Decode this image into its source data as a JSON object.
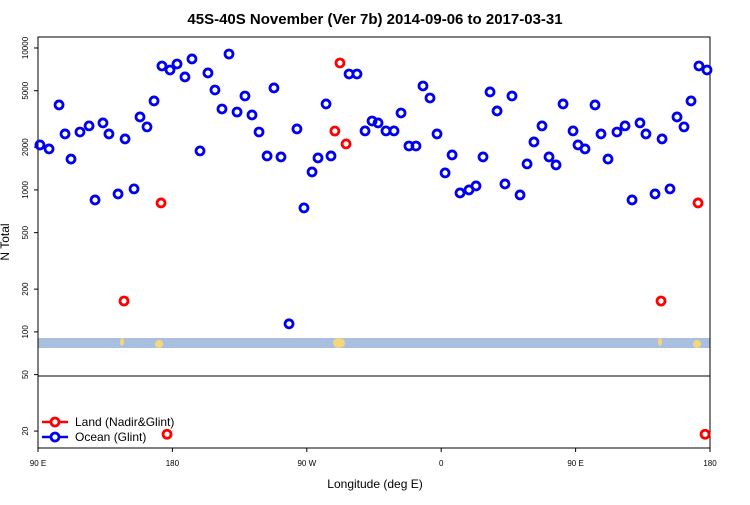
{
  "chart_data": {
    "type": "scatter",
    "title": "45S-40S November (Ver 7b)   2014-09-06 to 2017-03-31",
    "xlabel": "Longitude (deg E)",
    "ylabel": "N Total",
    "ylog": true,
    "legend": "bottom-left",
    "xlim": [
      90,
      540
    ],
    "ylim": [
      15.2,
      11950
    ],
    "xticks": [
      {
        "value": 90,
        "label": "90 E"
      },
      180,
      {
        "value": 270,
        "label": "90 W"
      },
      {
        "value": 360,
        "label": "0"
      },
      {
        "value": 450,
        "label": "90 E"
      },
      {
        "value": 540,
        "label": "180"
      }
    ],
    "yticks": [
      20,
      50,
      100,
      200,
      500,
      1000,
      2000,
      5000,
      10000
    ],
    "series": [
      {
        "name": "Land (Nadir&Glint)",
        "color": "#ff0000",
        "x": [
          147.6,
          172.4,
          176.4,
          288.8,
          292.2,
          296.3,
          507.2,
          532.0,
          536.7
        ],
        "values": [
          165,
          810,
          19,
          2600,
          7840,
          2110,
          165,
          810,
          19
        ]
      },
      {
        "name": "Ocean (Glint)",
        "color": "#0000ee",
        "x": [
          91.3,
          97.4,
          104.1,
          108.1,
          112.1,
          118.1,
          124.2,
          128.2,
          133.5,
          137.5,
          143.6,
          148.3,
          154.3,
          158.3,
          163.0,
          167.7,
          173.0,
          178.4,
          183.1,
          188.4,
          193.1,
          198.5,
          203.8,
          208.5,
          213.2,
          217.9,
          223.3,
          228.6,
          233.3,
          238.0,
          243.4,
          248.0,
          252.7,
          258.1,
          263.4,
          268.1,
          273.5,
          277.5,
          282.9,
          286.2,
          298.3,
          303.6,
          309.0,
          313.7,
          317.7,
          323.0,
          328.4,
          333.1,
          338.4,
          343.1,
          347.8,
          352.5,
          357.2,
          362.6,
          367.3,
          372.6,
          378.6,
          383.3,
          388.0,
          392.7,
          397.4,
          402.7,
          407.4,
          412.8,
          417.5,
          422.1,
          427.5,
          432.2,
          436.9,
          441.6,
          448.3,
          451.6,
          456.3,
          463.0,
          467.0,
          471.7,
          477.7,
          483.1,
          487.8,
          493.1,
          497.1,
          503.2,
          507.9,
          513.2,
          517.9,
          522.6,
          527.3,
          532.6,
          538.0
        ],
        "values": [
          2075,
          1945,
          3970,
          2480,
          1650,
          2560,
          2825,
          850,
          2965,
          2480,
          937,
          2287,
          1017,
          3267,
          2780,
          4235,
          7470,
          7000,
          7715,
          6250,
          8370,
          1883,
          6670,
          5060,
          3718,
          9070,
          3540,
          4590,
          3375,
          2560,
          1735,
          5230,
          1708,
          114,
          2690,
          747,
          1339,
          1680,
          4035,
          1735,
          6560,
          6560,
          2605,
          3060,
          2965,
          2605,
          2605,
          3485,
          2040,
          2040,
          5400,
          4445,
          2480,
          1318,
          1764,
          952,
          1000,
          1067,
          1708,
          4900,
          3600,
          1102,
          4590,
          922,
          1525,
          2178,
          2825,
          1708,
          1500,
          4035,
          2605,
          2075,
          1945,
          3970,
          2480,
          1650,
          2560,
          2825,
          850,
          2965,
          2480,
          937,
          2287,
          1017,
          3267,
          2780,
          4235,
          7470,
          7000
        ]
      }
    ]
  }
}
